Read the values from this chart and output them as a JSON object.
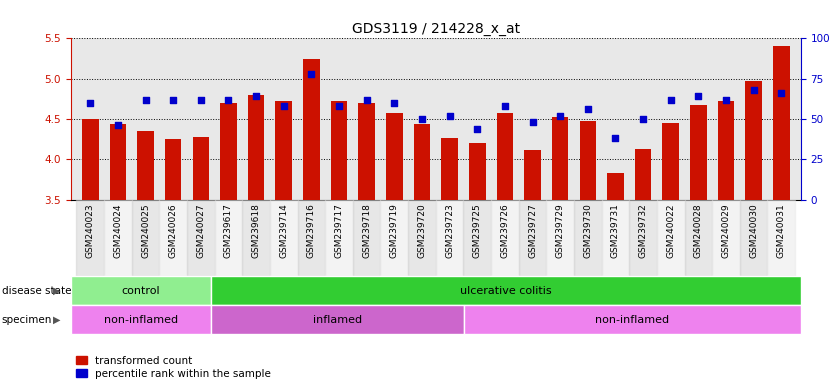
{
  "title": "GDS3119 / 214228_x_at",
  "samples": [
    "GSM240023",
    "GSM240024",
    "GSM240025",
    "GSM240026",
    "GSM240027",
    "GSM239617",
    "GSM239618",
    "GSM239714",
    "GSM239716",
    "GSM239717",
    "GSM239718",
    "GSM239719",
    "GSM239720",
    "GSM239723",
    "GSM239725",
    "GSM239726",
    "GSM239727",
    "GSM239729",
    "GSM239730",
    "GSM239731",
    "GSM239732",
    "GSM240022",
    "GSM240028",
    "GSM240029",
    "GSM240030",
    "GSM240031"
  ],
  "bar_values": [
    4.5,
    4.44,
    4.35,
    4.25,
    4.28,
    4.7,
    4.8,
    4.72,
    5.24,
    4.72,
    4.7,
    4.57,
    4.44,
    4.26,
    4.2,
    4.58,
    4.12,
    4.53,
    4.47,
    3.83,
    4.13,
    4.45,
    4.68,
    4.72,
    4.97,
    5.4
  ],
  "dot_values": [
    60,
    46,
    62,
    62,
    62,
    62,
    64,
    58,
    78,
    58,
    62,
    60,
    50,
    52,
    44,
    58,
    48,
    52,
    56,
    38,
    50,
    62,
    64,
    62,
    68,
    66
  ],
  "ylim_left": [
    3.5,
    5.5
  ],
  "ylim_right": [
    0,
    100
  ],
  "yticks_left": [
    3.5,
    4.0,
    4.5,
    5.0,
    5.5
  ],
  "yticks_right": [
    0,
    25,
    50,
    75,
    100
  ],
  "bar_color": "#cc1100",
  "dot_color": "#0000cc",
  "bg_color": "#e8e8e8",
  "disease_state": [
    {
      "label": "control",
      "start": 0,
      "end": 5,
      "color": "#90ee90"
    },
    {
      "label": "ulcerative colitis",
      "start": 5,
      "end": 26,
      "color": "#32cd32"
    }
  ],
  "specimen": [
    {
      "label": "non-inflamed",
      "start": 0,
      "end": 5,
      "color": "#ee82ee"
    },
    {
      "label": "inflamed",
      "start": 5,
      "end": 14,
      "color": "#cc66cc"
    },
    {
      "label": "non-inflamed",
      "start": 14,
      "end": 26,
      "color": "#ee82ee"
    }
  ],
  "legend_items": [
    {
      "label": "transformed count",
      "color": "#cc1100"
    },
    {
      "label": "percentile rank within the sample",
      "color": "#0000cc"
    }
  ],
  "n_samples": 26,
  "figsize": [
    8.34,
    3.84
  ],
  "dpi": 100
}
